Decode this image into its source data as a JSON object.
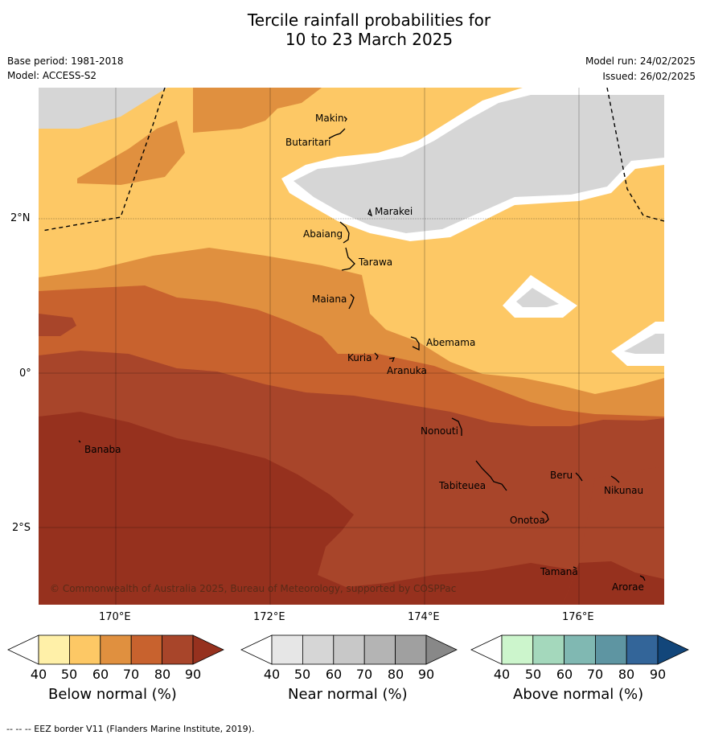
{
  "title_line1": "Tercile rainfall probabilities for",
  "title_line2": "10 to 23 March 2025",
  "base_period": "Base period: 1981-2018",
  "model": "Model: ACCESS-S2",
  "model_run": "Model run: 24/02/2025",
  "issued": "Issued: 26/02/2025",
  "lat_labels": [
    "2°N",
    "0°",
    "2°S"
  ],
  "lon_labels": [
    "170°E",
    "172°E",
    "174°E",
    "176°E"
  ],
  "islands": [
    "Makin",
    "Butaritari",
    "Marakei",
    "Abaiang",
    "Tarawa",
    "Maiana",
    "Abemama",
    "Kuria",
    "Aranuka",
    "Nonouti",
    "Banaba",
    "Beru",
    "Nikunau",
    "Tabiteuea",
    "Onotoa",
    "Tamana",
    "Arorae"
  ],
  "copyright": "© Commonwealth of Australia 2025, Bureau of Meteorology, supported by COSPPac",
  "colorbars": [
    {
      "label": "Below normal (%)",
      "ticks": [
        "40",
        "50",
        "60",
        "70",
        "80",
        "90"
      ],
      "colors": [
        "#fff0a8",
        "#fdc865",
        "#e0903f",
        "#c8622e",
        "#a8452a",
        "#96311e"
      ]
    },
    {
      "label": "Near normal (%)",
      "ticks": [
        "40",
        "50",
        "60",
        "70",
        "80",
        "90"
      ],
      "colors": [
        "#e6e6e6",
        "#d6d6d6",
        "#c8c8c8",
        "#b4b4b4",
        "#a0a0a0",
        "#888888"
      ]
    },
    {
      "label": "Above normal (%)",
      "ticks": [
        "40",
        "50",
        "60",
        "70",
        "80",
        "90"
      ],
      "colors": [
        "#ccf5cc",
        "#a4d8bc",
        "#80b8b2",
        "#5e95a2",
        "#336599",
        "#12467a"
      ]
    }
  ],
  "footer": "-- -- -- EEZ border V11 (Flanders Marine Institute, 2019)."
}
